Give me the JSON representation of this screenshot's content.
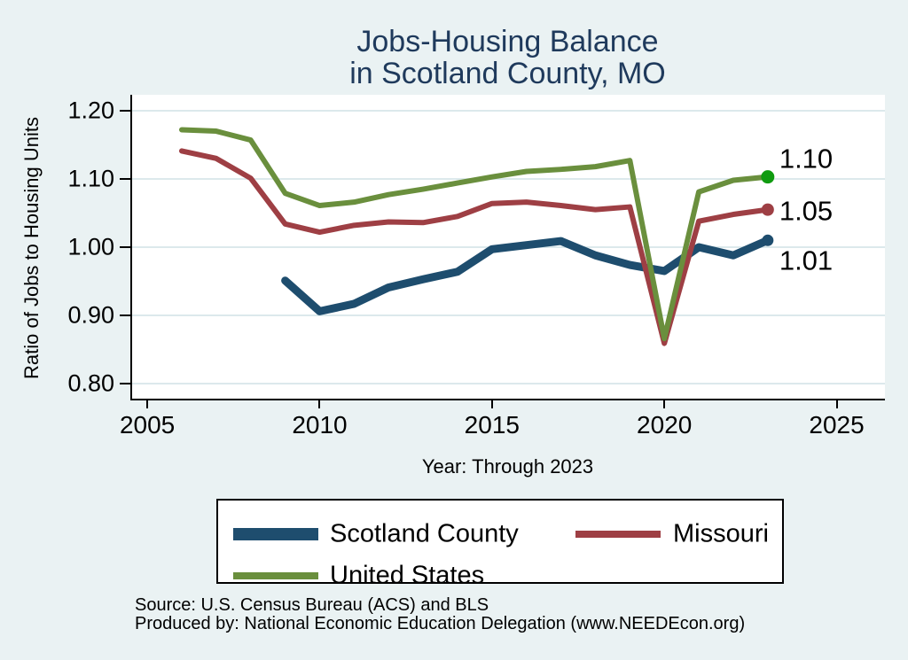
{
  "title": {
    "line1": "Jobs-Housing Balance",
    "line2": "in Scotland County, MO",
    "color": "#1f3a5c"
  },
  "axes": {
    "y_label": "Ratio of Jobs to Housing Units",
    "y_ticks": [
      "1.20",
      "1.10",
      "1.00",
      "0.90",
      "0.80"
    ],
    "x_ticks": [
      "2005",
      "2010",
      "2015",
      "2020",
      "2025"
    ],
    "x_title": "Year: Through 2023"
  },
  "chart_data": {
    "type": "line",
    "title": "Jobs-Housing Balance in Scotland County, MO",
    "xlabel": "Year: Through 2023",
    "ylabel": "Ratio of Jobs to Housing Units",
    "xlim": [
      2004.56,
      2026.4
    ],
    "ylim": [
      0.778,
      1.2233
    ],
    "grid": true,
    "grid_values": [
      0.8,
      0.9,
      1.0,
      1.1,
      1.2
    ],
    "legend_position": "bottom",
    "series": [
      {
        "name": "Scotland County",
        "color": "#1e4d6e",
        "width": 9,
        "dot_color": "#1e4d6e",
        "dot_radius": 6.5,
        "end_label": "1.01",
        "end_label_dy": 23,
        "x": [
          2009,
          2010,
          2011,
          2012,
          2013,
          2014,
          2015,
          2016,
          2017,
          2018,
          2019,
          2020,
          2021,
          2022,
          2023
        ],
        "values": [
          0.951,
          0.906,
          0.917,
          0.941,
          0.953,
          0.964,
          0.997,
          1.003,
          1.009,
          0.988,
          0.974,
          0.965,
          1.0,
          0.988,
          1.01
        ]
      },
      {
        "name": "Missouri",
        "color": "#9e3f44",
        "width": 6,
        "dot_color": "#9e3f44",
        "dot_radius": 7,
        "end_label": "1.05",
        "end_label_dy": 1,
        "x": [
          2006,
          2007,
          2008,
          2009,
          2010,
          2011,
          2012,
          2013,
          2014,
          2015,
          2016,
          2017,
          2018,
          2019,
          2020,
          2021,
          2022,
          2023
        ],
        "values": [
          1.141,
          1.13,
          1.101,
          1.034,
          1.022,
          1.032,
          1.037,
          1.036,
          1.045,
          1.064,
          1.066,
          1.061,
          1.055,
          1.059,
          0.859,
          1.038,
          1.048,
          1.055
        ]
      },
      {
        "name": "United States",
        "color": "#6a8f3d",
        "width": 6,
        "dot_color": "#109b10",
        "dot_radius": 7.5,
        "end_label": "1.10",
        "end_label_dy": -21,
        "x": [
          2006,
          2007,
          2008,
          2009,
          2010,
          2011,
          2012,
          2013,
          2014,
          2015,
          2016,
          2017,
          2018,
          2019,
          2020,
          2021,
          2022,
          2023
        ],
        "values": [
          1.172,
          1.17,
          1.157,
          1.079,
          1.061,
          1.066,
          1.077,
          1.085,
          1.094,
          1.103,
          1.111,
          1.114,
          1.118,
          1.127,
          0.866,
          1.081,
          1.098,
          1.103
        ]
      }
    ]
  },
  "legend": {
    "items": [
      {
        "label": "Scotland County",
        "color": "#1e4d6e"
      },
      {
        "label": "Missouri",
        "color": "#9e3f44"
      },
      {
        "label": "United States",
        "color": "#6a8f3d"
      }
    ]
  },
  "footer": {
    "source": "Source: U.S. Census Bureau (ACS) and BLS",
    "produced": "Produced by: National Economic Education Delegation (www.NEEDEcon.org)"
  },
  "colors": {
    "background": "#eaf2f3",
    "plot_background": "#ffffff",
    "gridline": "#dce9ec",
    "axis": "#000000",
    "title": "#1f3a5c"
  }
}
